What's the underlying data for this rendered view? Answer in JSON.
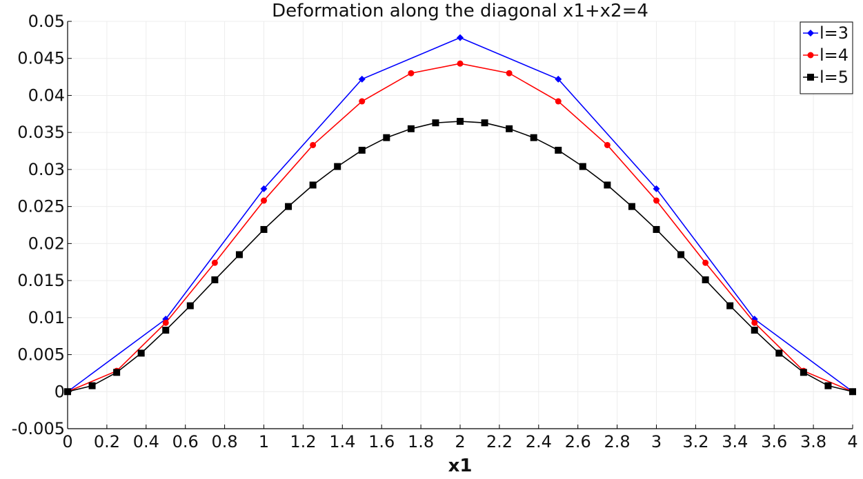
{
  "chart_data": {
    "type": "line",
    "title": "Deformation along the diagonal x1+x2=4",
    "xlabel": "x1",
    "ylabel": "",
    "xlim": [
      0,
      4
    ],
    "ylim": [
      -0.005,
      0.05
    ],
    "grid": true,
    "legend_position": "top-right",
    "x_ticks": [
      0,
      0.2,
      0.4,
      0.6,
      0.8,
      1,
      1.2,
      1.4,
      1.6,
      1.8,
      2,
      2.2,
      2.4,
      2.6,
      2.8,
      3,
      3.2,
      3.4,
      3.6,
      3.8,
      4
    ],
    "x_tick_labels": [
      "0",
      "0.2",
      "0.4",
      "0.6",
      "0.8",
      "1",
      "1.2",
      "1.4",
      "1.6",
      "1.8",
      "2",
      "2.2",
      "2.4",
      "2.6",
      "2.8",
      "3",
      "3.2",
      "3.4",
      "3.6",
      "3.8",
      "4"
    ],
    "y_ticks": [
      -0.005,
      0,
      0.005,
      0.01,
      0.015,
      0.02,
      0.025,
      0.03,
      0.035,
      0.04,
      0.045,
      0.05
    ],
    "y_tick_labels": [
      "-0.005",
      "0",
      "0.005",
      "0.01",
      "0.015",
      "0.02",
      "0.025",
      "0.03",
      "0.035",
      "0.04",
      "0.045",
      "0.05"
    ],
    "series": [
      {
        "name": "l=3",
        "color": "#0000ff",
        "marker": "diamond",
        "x": [
          0,
          0.5,
          1,
          1.5,
          2,
          2.5,
          3,
          3.5,
          4
        ],
        "y": [
          0,
          0.0098,
          0.0274,
          0.0422,
          0.0478,
          0.0422,
          0.0274,
          0.0098,
          0
        ]
      },
      {
        "name": "l=4",
        "color": "#ff0000",
        "marker": "circle",
        "x": [
          0,
          0.25,
          0.5,
          0.75,
          1,
          1.25,
          1.5,
          1.75,
          2,
          2.25,
          2.5,
          2.75,
          3,
          3.25,
          3.5,
          3.75,
          4
        ],
        "y": [
          0,
          0.0028,
          0.0093,
          0.0174,
          0.0258,
          0.0333,
          0.0392,
          0.043,
          0.0443,
          0.043,
          0.0392,
          0.0333,
          0.0258,
          0.0174,
          0.0093,
          0.0028,
          0
        ]
      },
      {
        "name": "l=5",
        "color": "#000000",
        "marker": "square",
        "x": [
          0,
          0.125,
          0.25,
          0.375,
          0.5,
          0.625,
          0.75,
          0.875,
          1,
          1.125,
          1.25,
          1.375,
          1.5,
          1.625,
          1.75,
          1.875,
          2,
          2.125,
          2.25,
          2.375,
          2.5,
          2.625,
          2.75,
          2.875,
          3,
          3.125,
          3.25,
          3.375,
          3.5,
          3.625,
          3.75,
          3.875,
          4
        ],
        "y": [
          0,
          0.0008,
          0.0026,
          0.0052,
          0.0083,
          0.0116,
          0.0151,
          0.0185,
          0.0219,
          0.025,
          0.0279,
          0.0304,
          0.0326,
          0.0343,
          0.0355,
          0.0363,
          0.0365,
          0.0363,
          0.0355,
          0.0343,
          0.0326,
          0.0304,
          0.0279,
          0.025,
          0.0219,
          0.0185,
          0.0151,
          0.0116,
          0.0083,
          0.0052,
          0.0026,
          0.0008,
          0
        ]
      }
    ]
  }
}
